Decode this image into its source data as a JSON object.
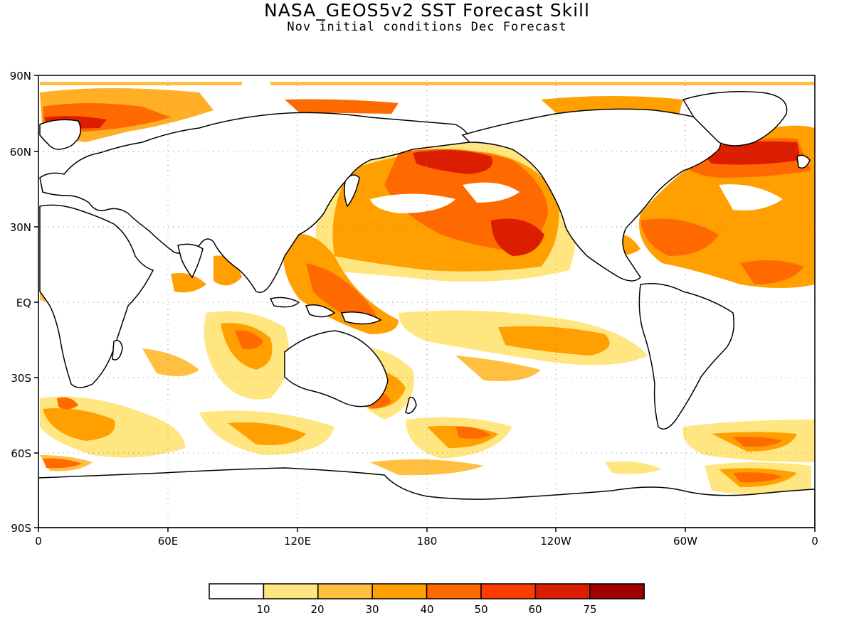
{
  "title": "NASA_GEOS5v2 SST Forecast Skill",
  "subtitle": "Nov initial conditions  Dec Forecast",
  "map": {
    "lat_labels": [
      "90N",
      "60N",
      "30N",
      "EQ",
      "30S",
      "60S",
      "90S"
    ],
    "lon_labels": [
      "0",
      "60E",
      "120E",
      "180",
      "120W",
      "60W",
      "0"
    ]
  },
  "colorbar": {
    "colors": [
      "#ffffff",
      "#ffe680",
      "#ffbf40",
      "#ffa000",
      "#ff6a00",
      "#ff3c00",
      "#dc1e00",
      "#a00000"
    ],
    "labels": [
      "10",
      "20",
      "30",
      "40",
      "50",
      "60",
      "75"
    ]
  }
}
